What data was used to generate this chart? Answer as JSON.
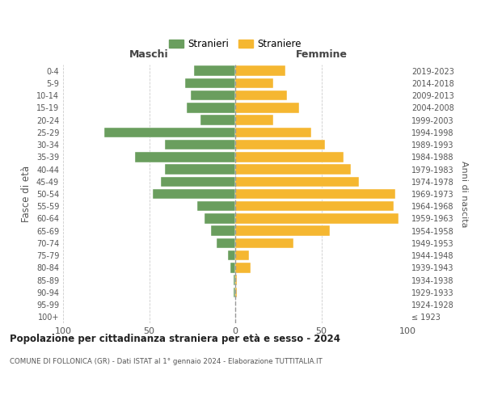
{
  "age_groups": [
    "100+",
    "95-99",
    "90-94",
    "85-89",
    "80-84",
    "75-79",
    "70-74",
    "65-69",
    "60-64",
    "55-59",
    "50-54",
    "45-49",
    "40-44",
    "35-39",
    "30-34",
    "25-29",
    "20-24",
    "15-19",
    "10-14",
    "5-9",
    "0-4"
  ],
  "birth_years": [
    "≤ 1923",
    "1924-1928",
    "1929-1933",
    "1934-1938",
    "1939-1943",
    "1944-1948",
    "1949-1953",
    "1954-1958",
    "1959-1963",
    "1964-1968",
    "1969-1973",
    "1974-1978",
    "1979-1983",
    "1984-1988",
    "1989-1993",
    "1994-1998",
    "1999-2003",
    "2004-2008",
    "2009-2013",
    "2014-2018",
    "2019-2023"
  ],
  "maschi": [
    0,
    0,
    1,
    1,
    3,
    4,
    11,
    14,
    18,
    22,
    48,
    43,
    41,
    58,
    41,
    76,
    20,
    28,
    26,
    29,
    24
  ],
  "femmine": [
    0,
    0,
    1,
    1,
    9,
    8,
    34,
    55,
    95,
    92,
    93,
    72,
    67,
    63,
    52,
    44,
    22,
    37,
    30,
    22,
    29
  ],
  "maschi_color": "#6a9e5e",
  "femmine_color": "#f5b731",
  "background_color": "#ffffff",
  "grid_color": "#cccccc",
  "title": "Popolazione per cittadinanza straniera per età e sesso - 2024",
  "subtitle": "COMUNE DI FOLLONICA (GR) - Dati ISTAT al 1° gennaio 2024 - Elaborazione TUTTITALIA.IT",
  "xlabel_left": "Maschi",
  "xlabel_right": "Femmine",
  "ylabel_left": "Fasce di età",
  "ylabel_right": "Anni di nascita",
  "xlim": 100,
  "legend_maschi": "Stranieri",
  "legend_femmine": "Straniere"
}
